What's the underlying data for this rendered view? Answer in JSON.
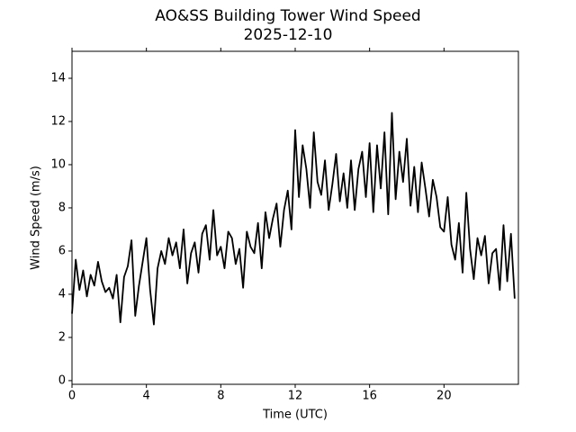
{
  "chart_data": {
    "type": "line",
    "title": "AO&SS Building Tower Wind Speed",
    "subtitle": "2025-12-10",
    "xlabel": "Time (UTC)",
    "ylabel": "Wind Speed (m/s)",
    "xlim": [
      0,
      24
    ],
    "ylim": [
      -0.17,
      15.25
    ],
    "xticks": [
      0,
      4,
      8,
      12,
      16,
      20
    ],
    "yticks": [
      0,
      2,
      4,
      6,
      8,
      10,
      12,
      14
    ],
    "x": [
      0,
      0.2,
      0.4,
      0.6,
      0.8,
      1,
      1.2,
      1.4,
      1.6,
      1.8,
      2,
      2.2,
      2.4,
      2.6,
      2.8,
      3,
      3.2,
      3.4,
      3.6,
      3.8,
      4,
      4.2,
      4.4,
      4.6,
      4.8,
      5,
      5.2,
      5.4,
      5.6,
      5.8,
      6,
      6.2,
      6.4,
      6.6,
      6.8,
      7,
      7.2,
      7.4,
      7.6,
      7.8,
      8,
      8.2,
      8.4,
      8.6,
      8.8,
      9,
      9.2,
      9.4,
      9.6,
      9.8,
      10,
      10.2,
      10.4,
      10.6,
      10.8,
      11,
      11.2,
      11.4,
      11.6,
      11.8,
      12,
      12.2,
      12.4,
      12.6,
      12.8,
      13,
      13.2,
      13.4,
      13.6,
      13.8,
      14,
      14.2,
      14.4,
      14.6,
      14.8,
      15,
      15.2,
      15.4,
      15.6,
      15.8,
      16,
      16.2,
      16.4,
      16.6,
      16.8,
      17,
      17.2,
      17.4,
      17.6,
      17.8,
      18,
      18.2,
      18.4,
      18.6,
      18.8,
      19,
      19.2,
      19.4,
      19.6,
      19.8,
      20,
      20.2,
      20.4,
      20.6,
      20.8,
      21,
      21.2,
      21.4,
      21.6,
      21.8,
      22,
      22.2,
      22.4,
      22.6,
      22.8,
      23,
      23.2,
      23.4,
      23.6,
      23.8
    ],
    "series": [
      {
        "color": "#000000",
        "values": [
          3.1,
          5.6,
          4.2,
          5.1,
          3.9,
          4.9,
          4.4,
          5.5,
          4.6,
          4.1,
          4.3,
          3.8,
          4.9,
          2.7,
          4.8,
          5.3,
          6.5,
          3.0,
          4.4,
          5.5,
          6.6,
          4.2,
          2.6,
          5.2,
          6.0,
          5.4,
          6.6,
          5.8,
          6.4,
          5.2,
          7.0,
          4.5,
          5.9,
          6.4,
          5.0,
          6.8,
          7.2,
          5.6,
          7.9,
          5.8,
          6.2,
          5.2,
          6.9,
          6.6,
          5.4,
          6.1,
          4.3,
          6.9,
          6.2,
          5.9,
          7.3,
          5.2,
          7.8,
          6.6,
          7.5,
          8.2,
          6.2,
          7.9,
          8.8,
          7.0,
          11.6,
          8.5,
          10.9,
          9.8,
          8.0,
          11.5,
          9.2,
          8.6,
          10.2,
          7.9,
          9.1,
          10.5,
          8.3,
          9.6,
          8.0,
          10.2,
          7.9,
          9.8,
          10.6,
          8.5,
          11.0,
          7.8,
          10.9,
          8.9,
          11.5,
          7.7,
          12.4,
          8.4,
          10.6,
          9.2,
          11.2,
          8.1,
          9.9,
          7.8,
          10.1,
          8.9,
          7.6,
          9.3,
          8.5,
          7.1,
          6.9,
          8.5,
          6.3,
          5.6,
          7.3,
          5.0,
          8.7,
          6.1,
          4.7,
          6.6,
          5.8,
          6.7,
          4.5,
          5.9,
          6.1,
          4.2,
          7.2,
          4.6,
          6.8,
          3.8
        ]
      }
    ]
  }
}
